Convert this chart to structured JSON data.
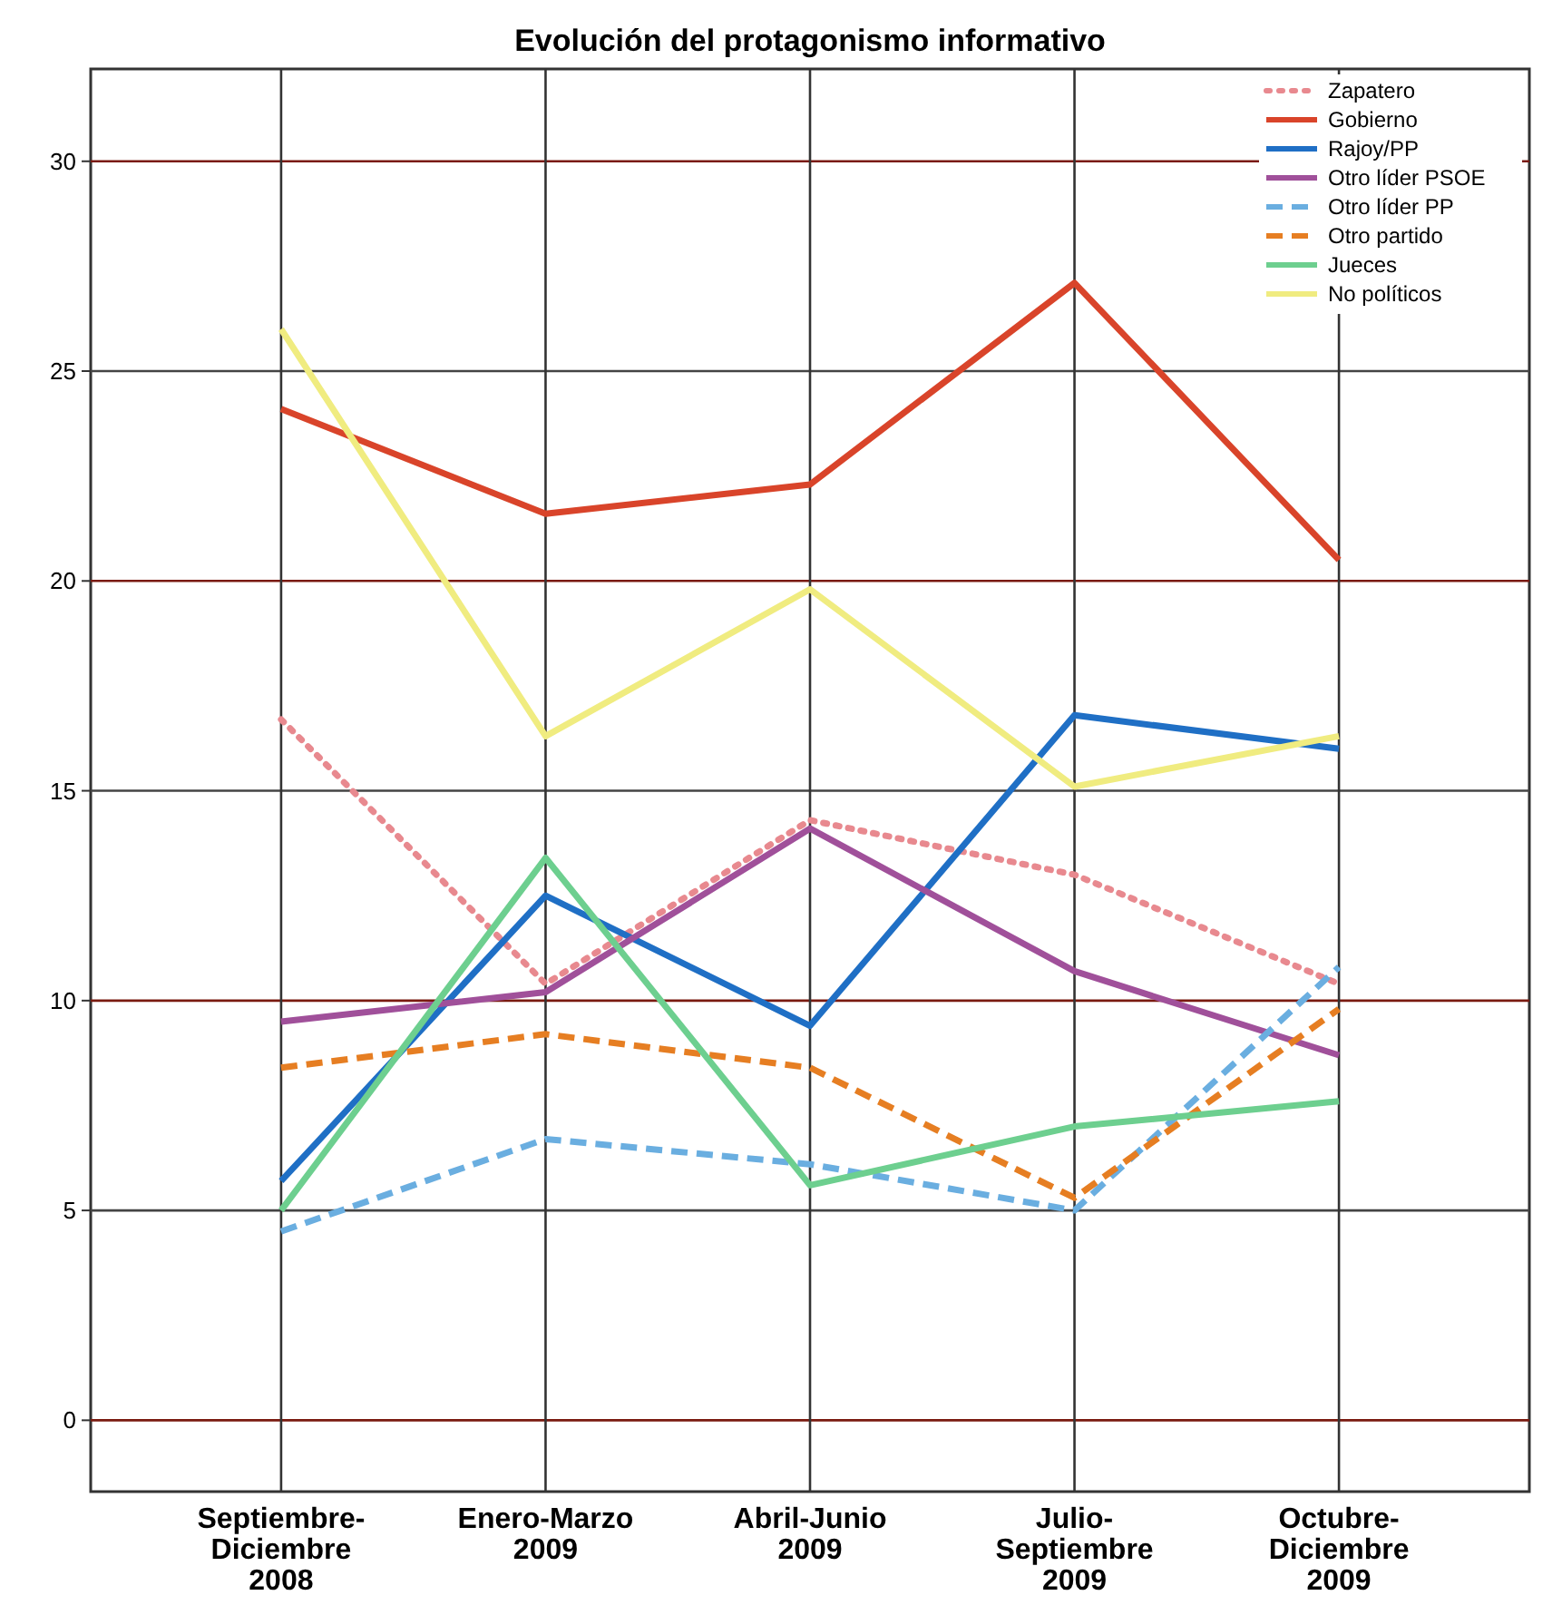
{
  "chart_data": {
    "type": "line",
    "title": "Evolución del protagonismo informativo",
    "categories": [
      "Septiembre-Diciembre 2008",
      "Enero-Marzo 2009",
      "Abril-Junio 2009",
      "Julio-Septiembre 2009",
      "Octubre-Diciembre 2009"
    ],
    "ylim": [
      -1.7,
      32.2
    ],
    "yticks": [
      0,
      5,
      10,
      15,
      20,
      25,
      30
    ],
    "grid": true,
    "legend": "top right",
    "marker": "none",
    "series": [
      {
        "name": "Zapatero",
        "color": "#e8898f",
        "line_style": "dotted",
        "values": [
          16.7,
          10.4,
          14.3,
          13.0,
          10.4
        ]
      },
      {
        "name": "Gobierno",
        "color": "#d9442a",
        "line_style": "solid",
        "values": [
          24.1,
          21.6,
          22.3,
          27.1,
          20.5
        ]
      },
      {
        "name": "Rajoy/PP",
        "color": "#1f6fc5",
        "line_style": "solid",
        "values": [
          5.7,
          12.5,
          9.4,
          16.8,
          16.0
        ]
      },
      {
        "name": "Otro líder PSOE",
        "color": "#a0509a",
        "line_style": "solid",
        "values": [
          9.5,
          10.2,
          14.1,
          10.7,
          8.7
        ]
      },
      {
        "name": "Otro líder PP",
        "color": "#6aaee0",
        "line_style": "dashed",
        "values": [
          4.5,
          6.7,
          6.1,
          5.0,
          10.8
        ]
      },
      {
        "name": "Otro partido",
        "color": "#e67e22",
        "line_style": "dashed",
        "values": [
          8.4,
          9.2,
          8.4,
          5.3,
          9.8
        ]
      },
      {
        "name": "Jueces",
        "color": "#6dcf8f",
        "line_style": "solid",
        "values": [
          5.0,
          13.4,
          5.6,
          7.0,
          7.6
        ]
      },
      {
        "name": "No políticos",
        "color": "#f0ec80",
        "line_style": "solid",
        "values": [
          26.0,
          16.3,
          19.8,
          15.1,
          16.3
        ]
      }
    ]
  }
}
